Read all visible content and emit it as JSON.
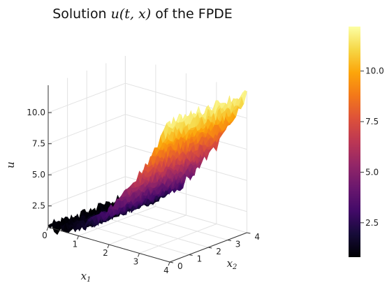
{
  "chart_data": {
    "type": "surface",
    "title_prefix": "Solution ",
    "title_math": "u(t, x)",
    "title_suffix": " of the FPDE",
    "xlabel": "x",
    "xlabel_sub": "1",
    "ylabel": "x",
    "ylabel_sub": "2",
    "zlabel": "u",
    "x_ticks": [
      "0",
      "1",
      "2",
      "3",
      "4"
    ],
    "y_ticks": [
      "0",
      "1",
      "2",
      "3",
      "4"
    ],
    "z_ticks": [
      "2.5",
      "5.0",
      "7.5",
      "10.0"
    ],
    "colorbar_ticks": [
      "2.5",
      "5.0",
      "7.5",
      "10.0"
    ],
    "xlim": [
      0,
      4
    ],
    "ylim": [
      0,
      4
    ],
    "zlim": [
      0.8,
      12.2
    ],
    "colorbar_range": [
      0.8,
      12.2
    ],
    "colormap": "inferno",
    "grid": true,
    "surface_approx": "u ≈ 0.8 + 0.7·x1²"
  }
}
